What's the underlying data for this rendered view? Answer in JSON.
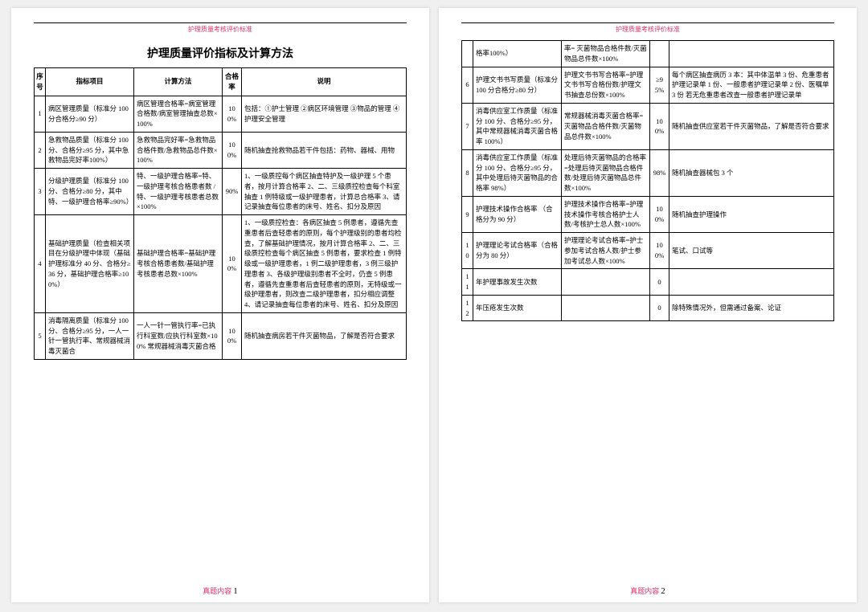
{
  "header_small": "护理质量考核评价标准",
  "title": "护理质量评价指标及计算方法",
  "footer": "真题内容",
  "columns": {
    "idx": "序号",
    "item": "指标项目",
    "calc": "计算方法",
    "rate": "合格率",
    "desc": "说明"
  },
  "page1_rows": [
    {
      "idx": "1",
      "item": "病区管理质量（标准分 100 分合格分≥90 分）",
      "calc": "病区管理合格率=病室管理合格数/病室管理抽查总数×100%",
      "rate": "100%",
      "desc": "包括：①护士管理 ②病区环境管理 ③物品的管理 ④护理安全管理"
    },
    {
      "idx": "2",
      "item": "急救物品质量（标准分 100 分、合格分≥95 分，其中急救物品完好率100%）",
      "calc": "急救物品完好率=急救物品合格件数/急救物品总件数×100%",
      "rate": "100%",
      "desc": "随机抽查抢救物品若干件包括：药物、器械、用物"
    },
    {
      "idx": "3",
      "item": "分级护理质量（标准分 100 分、合格分≥80 分，其中特、一级护理合格率≥90%）",
      "calc": "特、一级护理合格率=特、一级护理考核合格患者数 / 特、一级护理考核患者总数×100%",
      "rate": "90%",
      "desc": "1、一级质控每个病区抽查特护及一级护理 5 个患者，按月计算合格率\n2、二、三级质控检查每个科室抽查 1 例特级或一级护理患者，计算总合格率\n3、请记录抽查每位患者的床号、姓名、扣分及原因"
    },
    {
      "idx": "4",
      "item": "基础护理质量（检查相关项目在分级护理中体现（基础护理标准分 40 分、合格分≥36 分，基础护理合格率≥100%）",
      "calc": "基础护理合格率=基础护理考核合格患者数/基础护理考核患者总数×100%",
      "rate": "100%",
      "desc": "1、一级质控检查：各病区抽查 5 例患者，遵循先查重患者后查轻患者的原则，每个护理级别的患者均检查，了解基础护理情况，按月计算合格率\n2、二、三级质控检查每个病区抽查 5 例患者，要求检查 1 例特级或一级护理患者，1 例二级护理患者，3 例三级护理患者\n3、各级护理级别患者不全时，仍查 5 例患者，遵循先查重患者后查轻患者的原则，无特级或一级护理患者，则改查二级护理患者，扣分相应调整\n4、请记录抽查每位患者的床号、姓名、扣分及原因"
    },
    {
      "idx": "5",
      "item": "消毒隔离质量（标准分 100 分、合格分≥95 分，一人一针一管执行率、常规器械消毒灭菌合",
      "calc": "一人一针一管执行率=已执行科室数/应执行科室数×100%\n常规器械消毒灭菌合格",
      "rate": "100%",
      "desc": "随机抽查病房若干件灭菌物品，了解是否符合要求"
    }
  ],
  "page2_rows": [
    {
      "idx": "",
      "item": "格率100%）",
      "calc": "率=\n灭菌物品合格件数/灭菌物品总件数×100%",
      "rate": "",
      "desc": ""
    },
    {
      "idx": "6",
      "item": "护理文书书写质量（标准分 100 分合格分≥80 分）",
      "calc": "护理文书书写合格率=护理文书书写合格份数/护理文书抽查总份数×100%",
      "rate": "≥95%",
      "desc": "每个病区抽查病历 3 本：其中体温单 3 份、危重患者护理记录单 1 份、一般患者护理记录单 2 份、医嘱单 3 份\n若无危重患者改查一般患者护理记录单"
    },
    {
      "idx": "7",
      "item": "消毒供应室工作质量（标准分 100 分、合格分≥95 分，其中常规器械消毒灭菌合格率 100%）",
      "calc": "常规器械消毒灭菌合格率=\n灭菌物品合格件数/灭菌物品总件数×100%",
      "rate": "100%",
      "desc": "随机抽查供应室若干件灭菌物品，了解是否符合要求"
    },
    {
      "idx": "8",
      "item": "消毒供应室工作质量（标准分 100 分、合格分≥95 分，其中处理后待灭菌物品的合格率 98%）",
      "calc": "处理后待灭菌物品的合格率=处理后待灭菌物品合格件数/处理后待灭菌物品总件数×100%",
      "rate": "98%",
      "desc": "随机抽查器械包 3 个"
    },
    {
      "idx": "9",
      "item": "护理技术操作合格率\n（合格分为 90 分）",
      "calc": "护理技术操作合格率=护理技术操作考核合格护士人数/考核护士总人数×100%",
      "rate": "100%",
      "desc": "随机抽查护理操作"
    },
    {
      "idx": "10",
      "item": "护理理论考试合格率（合格分为 80 分）",
      "calc": "护理理论考试合格率=护士参加考试合格人数/护士参加考试总人数×100%",
      "rate": "100%",
      "desc": "笔试、口试等"
    },
    {
      "idx": "11",
      "item": "年护理事故发生次数",
      "calc": "",
      "rate": "0",
      "desc": ""
    },
    {
      "idx": "12",
      "item": "年压疮发生次数",
      "calc": "",
      "rate": "0",
      "desc": "除特殊情况外，但需通过备案、论证"
    }
  ]
}
